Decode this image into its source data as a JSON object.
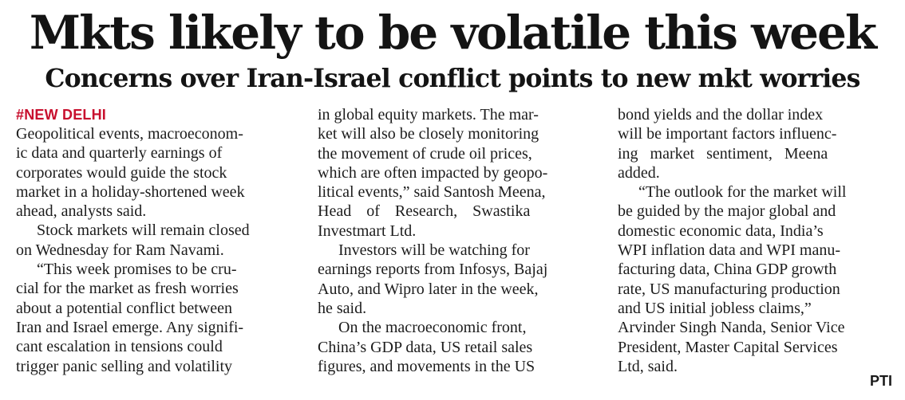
{
  "headline": "Mkts likely to be volatile this week",
  "subheadline": "Concerns over Iran-Israel conflict points to new mkt worries",
  "dateline": "#NEW DELHI",
  "credit": "PTI",
  "columns": [
    [
      "Geopolitical events, macroeconom-",
      "ic data and quarterly earnings of",
      "corporates would guide the stock",
      "market in a holiday-shortened week",
      "ahead, analysts said.",
      "Stock markets will remain closed",
      "on Wednesday for Ram Navami.",
      "“This week promises to be cru-",
      "cial for the market as fresh worries",
      "about a potential conflict between",
      "Iran and Israel emerge. Any signifi-",
      "cant escalation in tensions could",
      "trigger panic selling and volatility"
    ],
    [
      "in global equity markets. The mar-",
      "ket will also be closely monitoring",
      "the movement of crude oil prices,",
      "which are often impacted by geopo-",
      "litical events,” said Santosh Meena,",
      "Head of Research, Swastika",
      "Investmart Ltd.",
      "Investors will be watching for",
      "earnings reports from Infosys, Bajaj",
      "Auto, and Wipro later in the week,",
      "he said.",
      "On the macroeconomic front,",
      "China’s GDP data, US retail sales",
      "figures, and movements in the US"
    ],
    [
      "bond yields and the dollar index",
      "will be important factors influenc-",
      "ing market sentiment, Meena",
      "added.",
      "“The outlook for the market will",
      "be guided by the major global and",
      "domestic economic data, India’s",
      "WPI inflation data and WPI manu-",
      "facturing data, China GDP growth",
      "rate, US manufacturing production",
      "and US initial jobless claims,”",
      "Arvinder Singh Nanda, Senior Vice",
      "President, Master Capital Services",
      "Ltd, said."
    ]
  ]
}
